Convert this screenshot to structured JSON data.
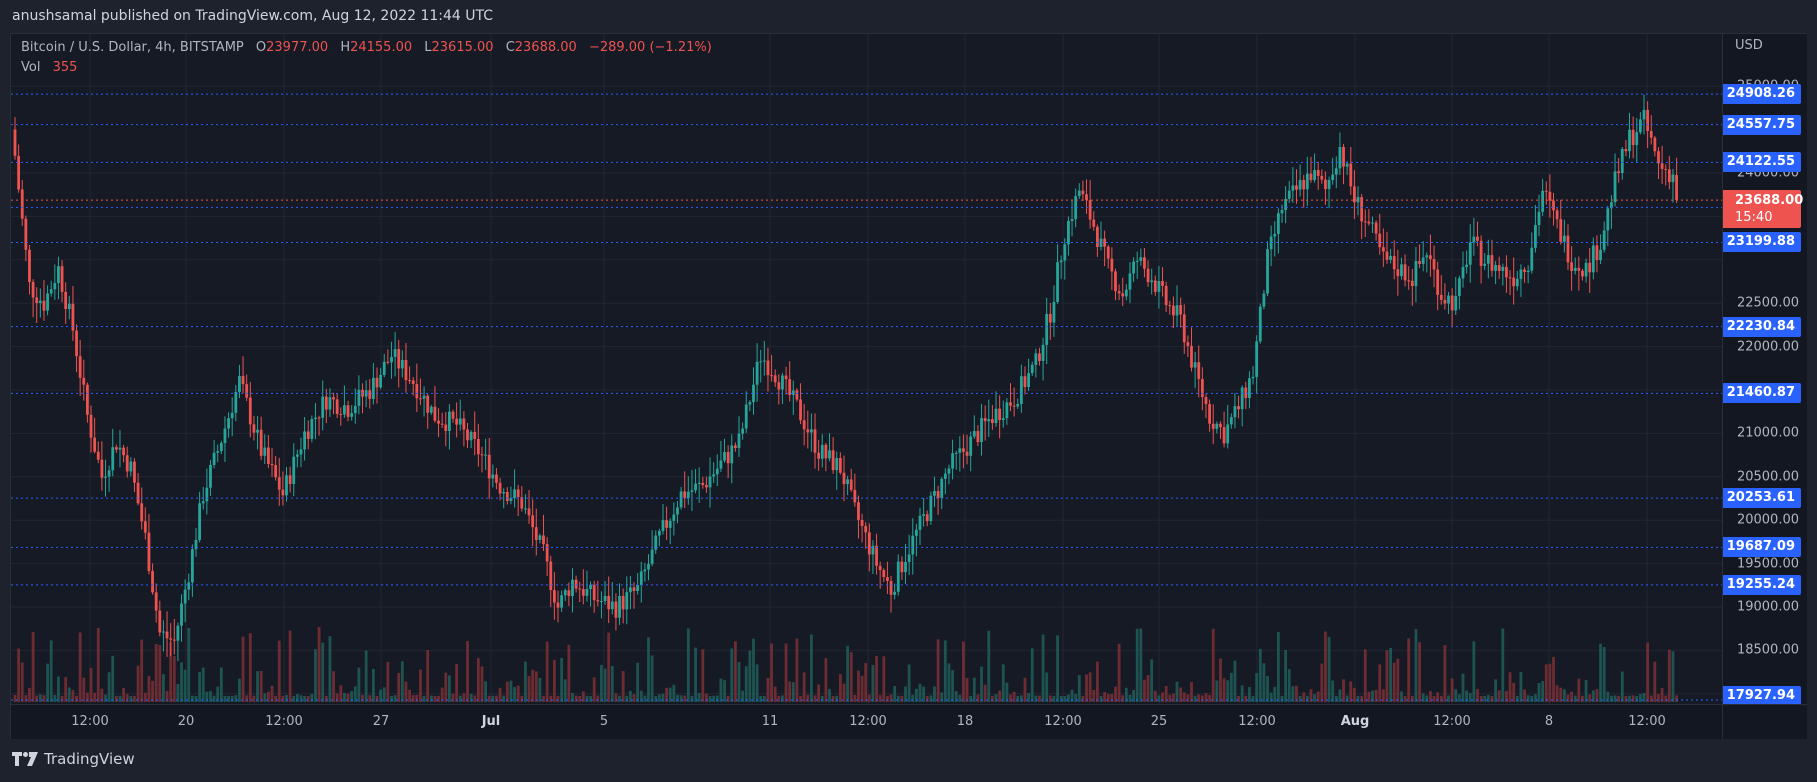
{
  "publisher": "anushsamal published on TradingView.com, Aug 12, 2022 11:44 UTC",
  "legend": {
    "symbol": "Bitcoin / U.S. Dollar, 4h, BITSTAMP",
    "o_label": "O",
    "o": "23977.00",
    "h_label": "H",
    "h": "24155.00",
    "l_label": "L",
    "l": "23615.00",
    "c_label": "C",
    "c": "23688.00",
    "change": "−289.00 (−1.21%)",
    "vol_label": "Vol",
    "vol": "355"
  },
  "price_axis": {
    "currency": "USD",
    "ticks": [
      "25000.00",
      "24000.00",
      "22500.00",
      "22000.00",
      "21000.00",
      "20500.00",
      "20000.00",
      "19500.00",
      "19000.00",
      "18500.00",
      "18000.00"
    ],
    "level_tags": [
      "24908.26",
      "24557.75",
      "24122.55",
      "23603.72",
      "23199.88",
      "22230.84",
      "21460.87",
      "20253.61",
      "19687.09",
      "19255.24",
      "17927.94"
    ],
    "last_price": "23688.00",
    "countdown": "15:40"
  },
  "time_axis": {
    "labels": [
      "12:00",
      "20",
      "12:00",
      "27",
      "Jul",
      "5",
      "11",
      "12:00",
      "18",
      "12:00",
      "25",
      "12:00",
      "Aug",
      "12:00",
      "8",
      "12:00"
    ]
  },
  "brand": "TradingView",
  "colors": {
    "up": "#26a69a",
    "down": "#ef5350",
    "level": "#2962ff",
    "last": "#ef5350"
  },
  "chart_data": {
    "type": "candlestick",
    "title": "Bitcoin / U.S. Dollar, 4h, BITSTAMP",
    "xlabel": "",
    "ylabel": "USD",
    "ylim": [
      17800,
      25200
    ],
    "x_ticks": [
      "12:00",
      "20",
      "12:00",
      "27",
      "Jul",
      "5",
      "11",
      "12:00",
      "18",
      "12:00",
      "25",
      "12:00",
      "Aug",
      "12:00",
      "8",
      "12:00"
    ],
    "y_ticks": [
      18500,
      19000,
      19500,
      20000,
      20500,
      21000,
      22000,
      22500,
      24000,
      25000
    ],
    "horizontal_levels": [
      24908.26,
      24557.75,
      24122.55,
      23603.72,
      23199.88,
      22230.84,
      21460.87,
      20253.61,
      19687.09,
      19255.24,
      17927.94
    ],
    "last": {
      "open": 23977.0,
      "high": 24155.0,
      "low": 23615.0,
      "close": 23688.0,
      "change": -289.0,
      "change_pct": -1.21,
      "volume": 355
    },
    "close_path_keypoints": [
      [
        0,
        24200
      ],
      [
        4,
        22700
      ],
      [
        8,
        22500
      ],
      [
        12,
        22900
      ],
      [
        16,
        22200
      ],
      [
        20,
        21200
      ],
      [
        24,
        20500
      ],
      [
        28,
        20900
      ],
      [
        32,
        20600
      ],
      [
        36,
        19800
      ],
      [
        40,
        18700
      ],
      [
        44,
        18600
      ],
      [
        48,
        19400
      ],
      [
        52,
        20300
      ],
      [
        56,
        20800
      ],
      [
        62,
        21600
      ],
      [
        68,
        20800
      ],
      [
        74,
        20300
      ],
      [
        80,
        21000
      ],
      [
        86,
        21400
      ],
      [
        92,
        21300
      ],
      [
        98,
        21500
      ],
      [
        104,
        21900
      ],
      [
        110,
        21600
      ],
      [
        116,
        21200
      ],
      [
        122,
        21100
      ],
      [
        128,
        20800
      ],
      [
        134,
        20400
      ],
      [
        140,
        20200
      ],
      [
        146,
        19600
      ],
      [
        150,
        19000
      ],
      [
        154,
        19300
      ],
      [
        160,
        19100
      ],
      [
        166,
        19000
      ],
      [
        172,
        19200
      ],
      [
        178,
        19800
      ],
      [
        184,
        20300
      ],
      [
        190,
        20400
      ],
      [
        196,
        20700
      ],
      [
        200,
        20900
      ],
      [
        206,
        21900
      ],
      [
        210,
        21700
      ],
      [
        216,
        21300
      ],
      [
        222,
        20800
      ],
      [
        228,
        20600
      ],
      [
        232,
        20100
      ],
      [
        238,
        19500
      ],
      [
        242,
        19200
      ],
      [
        246,
        19600
      ],
      [
        252,
        20100
      ],
      [
        258,
        20600
      ],
      [
        264,
        20900
      ],
      [
        270,
        21200
      ],
      [
        276,
        21400
      ],
      [
        282,
        21800
      ],
      [
        286,
        22400
      ],
      [
        290,
        23300
      ],
      [
        294,
        23800
      ],
      [
        298,
        23400
      ],
      [
        302,
        22900
      ],
      [
        306,
        22600
      ],
      [
        310,
        23000
      ],
      [
        314,
        22800
      ],
      [
        318,
        22500
      ],
      [
        322,
        22300
      ],
      [
        326,
        21700
      ],
      [
        330,
        21200
      ],
      [
        334,
        21000
      ],
      [
        338,
        21300
      ],
      [
        342,
        21700
      ],
      [
        346,
        23000
      ],
      [
        350,
        23600
      ],
      [
        354,
        23800
      ],
      [
        358,
        24000
      ],
      [
        362,
        23800
      ],
      [
        366,
        24300
      ],
      [
        370,
        23700
      ],
      [
        374,
        23400
      ],
      [
        378,
        23000
      ],
      [
        382,
        22900
      ],
      [
        386,
        22800
      ],
      [
        390,
        23100
      ],
      [
        394,
        22600
      ],
      [
        398,
        22500
      ],
      [
        402,
        23200
      ],
      [
        406,
        23000
      ],
      [
        410,
        22900
      ],
      [
        414,
        22800
      ],
      [
        418,
        23000
      ],
      [
        422,
        23800
      ],
      [
        426,
        23400
      ],
      [
        430,
        23000
      ],
      [
        434,
        22900
      ],
      [
        438,
        23200
      ],
      [
        442,
        23900
      ],
      [
        446,
        24400
      ],
      [
        450,
        24600
      ],
      [
        454,
        24100
      ],
      [
        458,
        23977
      ],
      [
        459,
        23688
      ]
    ]
  }
}
